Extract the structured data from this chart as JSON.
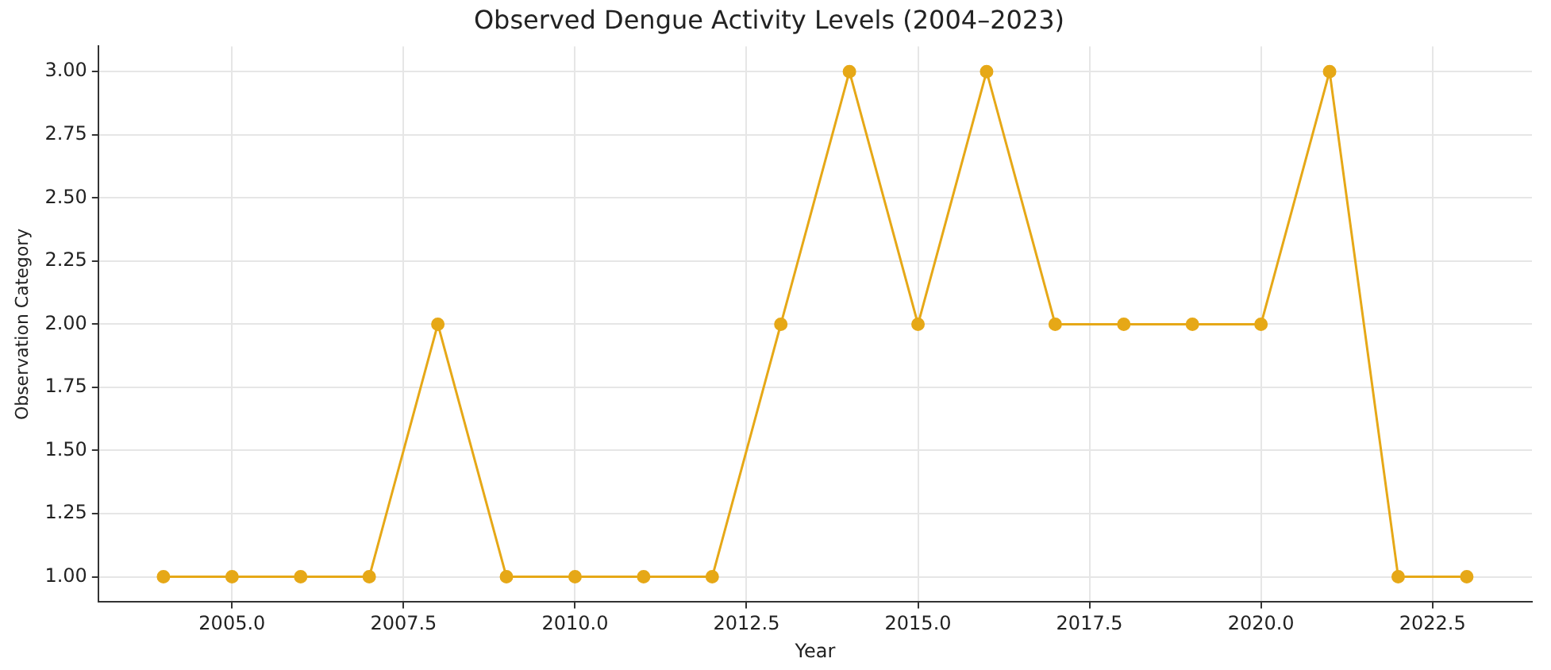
{
  "chart_data": {
    "type": "line",
    "title": "Observed Dengue Activity Levels (2004–2023)",
    "xlabel": "Year",
    "ylabel": "Observation Category",
    "x": [
      2004,
      2005,
      2006,
      2007,
      2008,
      2009,
      2010,
      2011,
      2012,
      2013,
      2014,
      2015,
      2016,
      2017,
      2018,
      2019,
      2020,
      2021,
      2022,
      2023
    ],
    "series": [
      {
        "color": "#e6a817",
        "values": [
          1,
          1,
          1,
          1,
          2,
          1,
          1,
          1,
          1,
          2,
          3,
          2,
          3,
          2,
          2,
          2,
          2,
          3,
          1,
          1
        ]
      }
    ],
    "xlim": [
      2003.05,
      2023.95
    ],
    "xticks": [
      {
        "value": 2005,
        "label": "2005.0"
      },
      {
        "value": 2007.5,
        "label": "2007.5"
      },
      {
        "value": 2010,
        "label": "2010.0"
      },
      {
        "value": 2012.5,
        "label": "2012.5"
      },
      {
        "value": 2015,
        "label": "2015.0"
      },
      {
        "value": 2017.5,
        "label": "2017.5"
      },
      {
        "value": 2020,
        "label": "2020.0"
      },
      {
        "value": 2022.5,
        "label": "2022.5"
      }
    ],
    "ylim": [
      0.9,
      3.1
    ],
    "yticks": [
      {
        "value": 1,
        "label": "1.00"
      },
      {
        "value": 1.25,
        "label": "1.25"
      },
      {
        "value": 1.5,
        "label": "1.50"
      },
      {
        "value": 1.75,
        "label": "1.75"
      },
      {
        "value": 2,
        "label": "2.00"
      },
      {
        "value": 2.25,
        "label": "2.25"
      },
      {
        "value": 2.5,
        "label": "2.50"
      },
      {
        "value": 2.75,
        "label": "2.75"
      },
      {
        "value": 3,
        "label": "3.00"
      }
    ],
    "grid": true,
    "marker": "circle",
    "line_style": "solid"
  }
}
